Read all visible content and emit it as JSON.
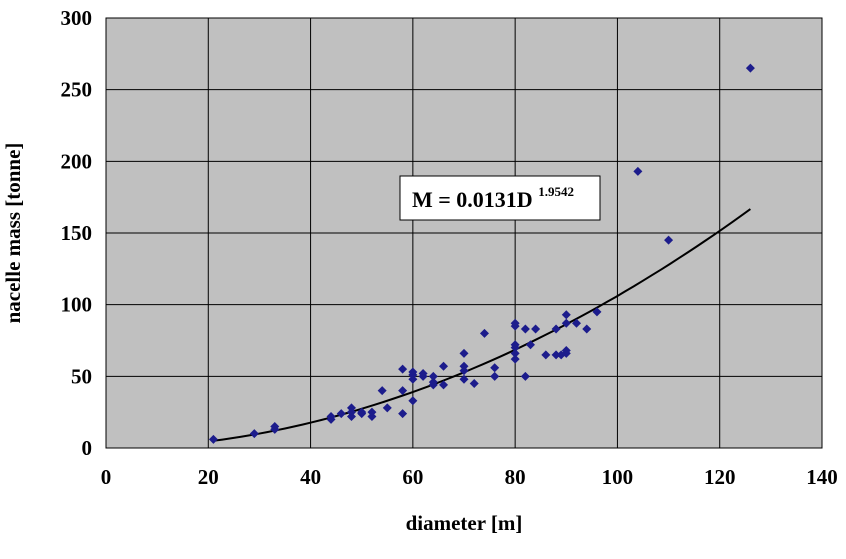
{
  "chart_data": {
    "type": "scatter",
    "title": "",
    "xlabel": "diameter [m]",
    "ylabel": "nacelle mass [tonne]",
    "xlim": [
      0,
      140
    ],
    "ylim": [
      0,
      300
    ],
    "xticks": [
      0,
      20,
      40,
      60,
      80,
      100,
      120,
      140
    ],
    "yticks": [
      0,
      50,
      100,
      150,
      200,
      250,
      300
    ],
    "grid": true,
    "legend": "none",
    "colors": {
      "plot_background": "#c0c0c0",
      "grid": "#000000",
      "marker": "#1c1c8c",
      "trend_line": "#000000"
    },
    "series": [
      {
        "marker": "diamond",
        "points": [
          [
            21,
            6
          ],
          [
            29,
            10
          ],
          [
            33,
            13
          ],
          [
            33,
            15
          ],
          [
            44,
            20
          ],
          [
            44,
            22
          ],
          [
            46,
            24
          ],
          [
            48,
            22
          ],
          [
            48,
            25
          ],
          [
            48,
            28
          ],
          [
            50,
            24
          ],
          [
            50,
            25
          ],
          [
            52,
            22
          ],
          [
            52,
            25
          ],
          [
            54,
            40
          ],
          [
            55,
            28
          ],
          [
            58,
            24
          ],
          [
            58,
            40
          ],
          [
            58,
            55
          ],
          [
            60,
            33
          ],
          [
            60,
            48
          ],
          [
            60,
            51
          ],
          [
            60,
            53
          ],
          [
            62,
            50
          ],
          [
            62,
            52
          ],
          [
            64,
            44
          ],
          [
            64,
            46
          ],
          [
            64,
            50
          ],
          [
            66,
            44
          ],
          [
            66,
            57
          ],
          [
            70,
            48
          ],
          [
            70,
            54
          ],
          [
            70,
            57
          ],
          [
            70,
            66
          ],
          [
            72,
            45
          ],
          [
            74,
            80
          ],
          [
            76,
            50
          ],
          [
            76,
            56
          ],
          [
            80,
            62
          ],
          [
            80,
            66
          ],
          [
            80,
            70
          ],
          [
            80,
            72
          ],
          [
            80,
            85
          ],
          [
            80,
            87
          ],
          [
            82,
            50
          ],
          [
            82,
            83
          ],
          [
            83,
            72
          ],
          [
            84,
            83
          ],
          [
            86,
            65
          ],
          [
            88,
            65
          ],
          [
            88,
            83
          ],
          [
            89,
            65
          ],
          [
            90,
            66
          ],
          [
            90,
            68
          ],
          [
            90,
            87
          ],
          [
            90,
            93
          ],
          [
            92,
            87
          ],
          [
            94,
            83
          ],
          [
            96,
            95
          ],
          [
            104,
            193
          ],
          [
            110,
            145
          ],
          [
            126,
            265
          ]
        ]
      }
    ],
    "trendline": {
      "type": "power",
      "coefficient": 0.0131,
      "exponent": 1.9542,
      "x_range": [
        21,
        126
      ]
    },
    "annotation": {
      "equation_main": "M = 0.0131D",
      "equation_exponent": "1.9542"
    }
  }
}
